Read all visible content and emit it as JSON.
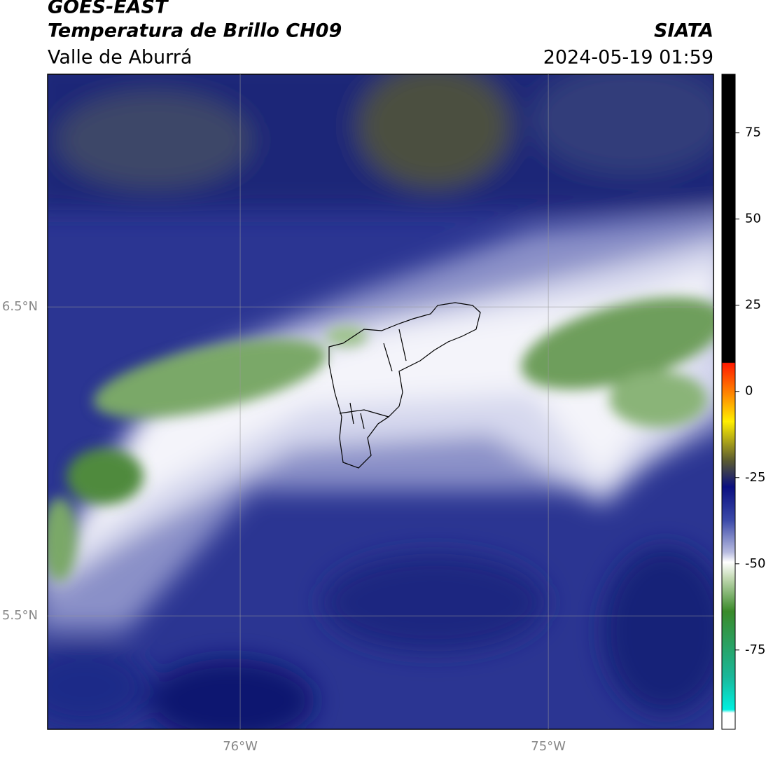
{
  "header": {
    "title": "GOES-EAST",
    "subtitle": "Temperatura de Brillo CH09",
    "region": "Valle de Aburrá",
    "source": "SIATA",
    "datetime": "2024-05-19 01:59"
  },
  "map": {
    "xlim": [
      -76.625,
      -74.464
    ],
    "ylim": [
      5.133,
      7.253
    ],
    "xticks": [
      {
        "value": -76,
        "label": "76°W"
      },
      {
        "value": -75,
        "label": "75°W"
      }
    ],
    "yticks": [
      {
        "value": 6.5,
        "label": "6.5°N"
      },
      {
        "value": 5.5,
        "label": "5.5°N"
      }
    ]
  },
  "colorbar": {
    "lim": [
      -98,
      92
    ],
    "ticks": [
      75,
      50,
      25,
      0,
      -25,
      -50,
      -75
    ]
  }
}
